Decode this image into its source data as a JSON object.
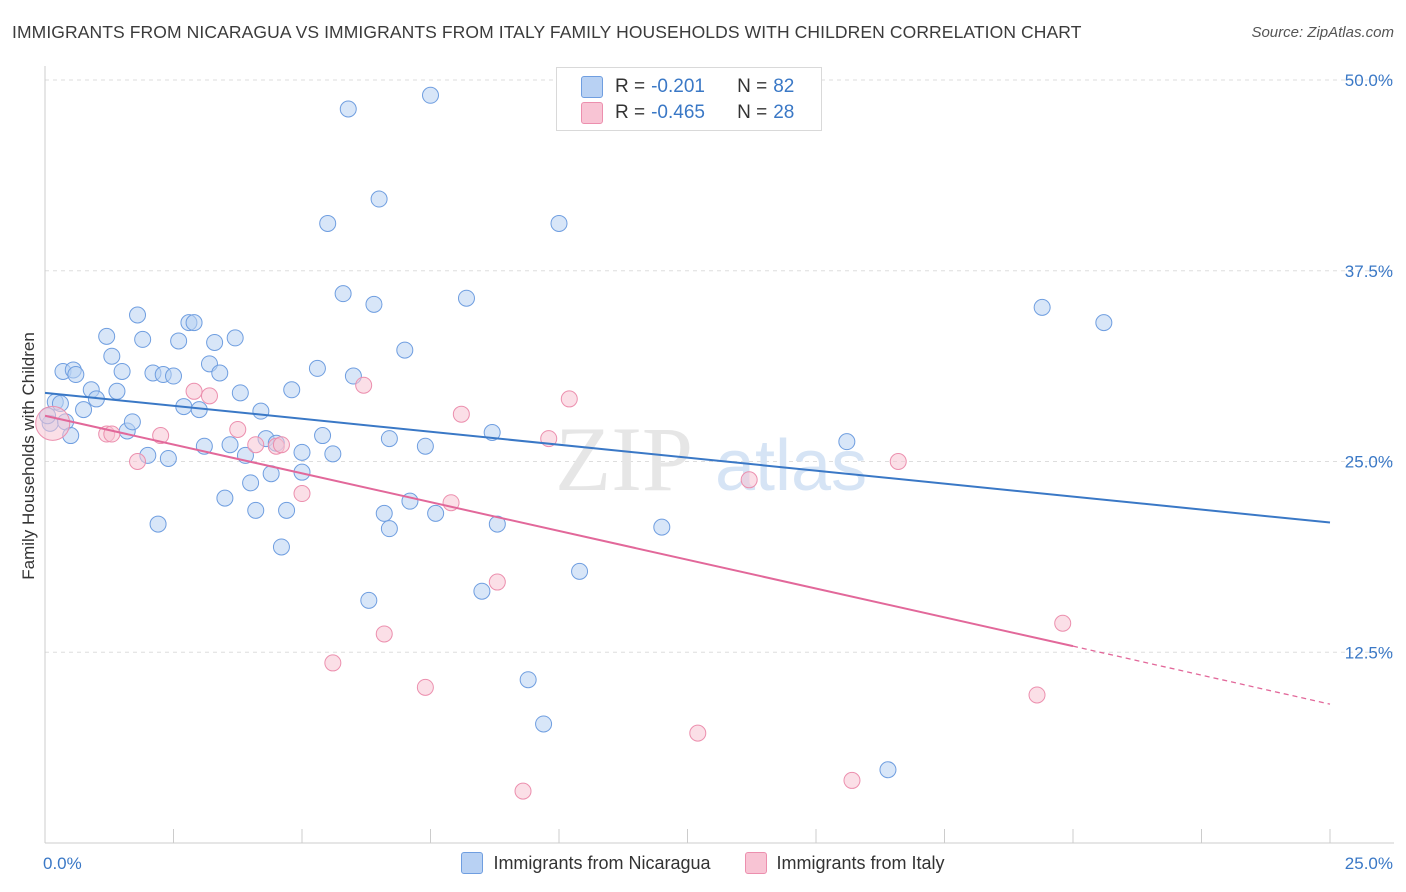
{
  "header": {
    "title": "IMMIGRANTS FROM NICARAGUA VS IMMIGRANTS FROM ITALY FAMILY HOUSEHOLDS WITH CHILDREN CORRELATION CHART",
    "source": "Source: ZipAtlas.com"
  },
  "legend": {
    "rows": [
      {
        "r_label": "R =",
        "r_value": "-0.201",
        "n_label": "N =",
        "n_value": "82"
      },
      {
        "r_label": "R =",
        "r_value": "-0.465",
        "n_label": "N =",
        "n_value": "28"
      }
    ]
  },
  "watermark": {
    "zip": "ZIP",
    "atlas": "atlas"
  },
  "colors": {
    "nicaragua_fill": "#b8d1f3",
    "nicaragua_stroke": "#6f9ee0",
    "nicaragua_line": "#3a78c6",
    "italy_fill": "#f8c4d4",
    "italy_stroke": "#ec8fae",
    "italy_line": "#e2689a",
    "tick_label": "#3a78c6",
    "grid": "#dddddd"
  },
  "chart_data": {
    "type": "scatter",
    "title": "IMMIGRANTS FROM NICARAGUA VS IMMIGRANTS FROM ITALY FAMILY HOUSEHOLDS WITH CHILDREN CORRELATION CHART",
    "xlabel": "",
    "ylabel": "Family Households with Children",
    "xlim": [
      0,
      25
    ],
    "ylim": [
      0,
      50
    ],
    "x_tick_labels": [
      "0.0%",
      "25.0%"
    ],
    "y_tick_labels": [
      "12.5%",
      "25.0%",
      "37.5%",
      "50.0%"
    ],
    "y_ticks": [
      12.5,
      25.0,
      37.5,
      50.0
    ],
    "grid": "horizontal dashed",
    "legend_position": "top-center",
    "series": [
      {
        "name": "Immigrants from Nicaragua",
        "R": -0.201,
        "N": 82,
        "trend": {
          "x": [
            0,
            25
          ],
          "y": [
            29.5,
            21.0
          ]
        },
        "points": [
          [
            0.1,
            27.5
          ],
          [
            0.2,
            28.9
          ],
          [
            0.3,
            28.8
          ],
          [
            0.35,
            30.9
          ],
          [
            0.4,
            27.6
          ],
          [
            0.5,
            26.7
          ],
          [
            0.55,
            31.0
          ],
          [
            0.6,
            30.7
          ],
          [
            0.75,
            28.4
          ],
          [
            0.9,
            29.7
          ],
          [
            1.0,
            29.1
          ],
          [
            1.2,
            33.2
          ],
          [
            1.3,
            31.9
          ],
          [
            1.4,
            29.6
          ],
          [
            1.5,
            30.9
          ],
          [
            1.6,
            27.0
          ],
          [
            1.7,
            27.6
          ],
          [
            1.8,
            34.6
          ],
          [
            1.9,
            33.0
          ],
          [
            2.0,
            25.4
          ],
          [
            2.1,
            30.8
          ],
          [
            2.2,
            20.9
          ],
          [
            2.3,
            30.7
          ],
          [
            2.4,
            25.2
          ],
          [
            2.5,
            30.6
          ],
          [
            2.6,
            32.9
          ],
          [
            2.7,
            28.6
          ],
          [
            2.8,
            34.1
          ],
          [
            2.9,
            34.1
          ],
          [
            3.0,
            28.4
          ],
          [
            3.1,
            26.0
          ],
          [
            3.2,
            31.4
          ],
          [
            3.3,
            32.8
          ],
          [
            3.4,
            30.8
          ],
          [
            3.5,
            22.6
          ],
          [
            3.6,
            26.1
          ],
          [
            3.7,
            33.1
          ],
          [
            3.8,
            29.5
          ],
          [
            3.9,
            25.4
          ],
          [
            4.0,
            23.6
          ],
          [
            4.1,
            21.8
          ],
          [
            4.2,
            28.3
          ],
          [
            4.3,
            26.5
          ],
          [
            4.4,
            24.2
          ],
          [
            4.5,
            26.2
          ],
          [
            4.6,
            19.4
          ],
          [
            4.7,
            21.8
          ],
          [
            4.8,
            29.7
          ],
          [
            5.0,
            25.6
          ],
          [
            5.0,
            24.3
          ],
          [
            5.3,
            31.1
          ],
          [
            5.4,
            26.7
          ],
          [
            5.5,
            40.6
          ],
          [
            5.6,
            25.5
          ],
          [
            5.8,
            36.0
          ],
          [
            5.9,
            48.1
          ],
          [
            6.0,
            30.6
          ],
          [
            6.3,
            15.9
          ],
          [
            6.4,
            35.3
          ],
          [
            6.5,
            42.2
          ],
          [
            6.6,
            21.6
          ],
          [
            6.7,
            26.5
          ],
          [
            6.7,
            20.6
          ],
          [
            7.0,
            32.3
          ],
          [
            7.1,
            22.4
          ],
          [
            7.4,
            26.0
          ],
          [
            7.5,
            49.0
          ],
          [
            7.6,
            21.6
          ],
          [
            8.2,
            35.7
          ],
          [
            8.5,
            16.5
          ],
          [
            8.7,
            26.9
          ],
          [
            8.8,
            20.9
          ],
          [
            9.4,
            10.7
          ],
          [
            9.7,
            7.8
          ],
          [
            10.0,
            40.6
          ],
          [
            10.4,
            17.8
          ],
          [
            12.0,
            20.7
          ],
          [
            15.6,
            26.3
          ],
          [
            16.4,
            4.8
          ],
          [
            19.4,
            35.1
          ],
          [
            20.6,
            34.1
          ],
          [
            0.05,
            28.0
          ]
        ]
      },
      {
        "name": "Immigrants from Italy",
        "R": -0.465,
        "N": 28,
        "trend": {
          "x": [
            0,
            20
          ],
          "y": [
            28.0,
            12.9
          ]
        },
        "trend_dashed": {
          "x": [
            20,
            25
          ],
          "y": [
            12.9,
            9.1
          ]
        },
        "points": [
          [
            0.15,
            27.5
          ],
          [
            1.2,
            26.8
          ],
          [
            1.3,
            26.8
          ],
          [
            1.8,
            25.0
          ],
          [
            2.25,
            26.7
          ],
          [
            2.9,
            29.6
          ],
          [
            3.2,
            29.3
          ],
          [
            3.75,
            27.1
          ],
          [
            4.1,
            26.1
          ],
          [
            4.5,
            26.0
          ],
          [
            4.6,
            26.1
          ],
          [
            5.0,
            22.9
          ],
          [
            5.6,
            11.8
          ],
          [
            6.2,
            30.0
          ],
          [
            6.6,
            13.7
          ],
          [
            7.4,
            10.2
          ],
          [
            7.9,
            22.3
          ],
          [
            8.1,
            28.1
          ],
          [
            8.8,
            17.1
          ],
          [
            9.3,
            3.4
          ],
          [
            9.8,
            26.5
          ],
          [
            10.2,
            29.1
          ],
          [
            12.7,
            7.2
          ],
          [
            13.7,
            23.8
          ],
          [
            15.7,
            4.1
          ],
          [
            16.6,
            25.0
          ],
          [
            19.3,
            9.7
          ],
          [
            19.8,
            14.4
          ]
        ]
      }
    ]
  },
  "bottom_legend": {
    "items": [
      {
        "label": "Immigrants from Nicaragua"
      },
      {
        "label": "Immigrants from Italy"
      }
    ]
  }
}
